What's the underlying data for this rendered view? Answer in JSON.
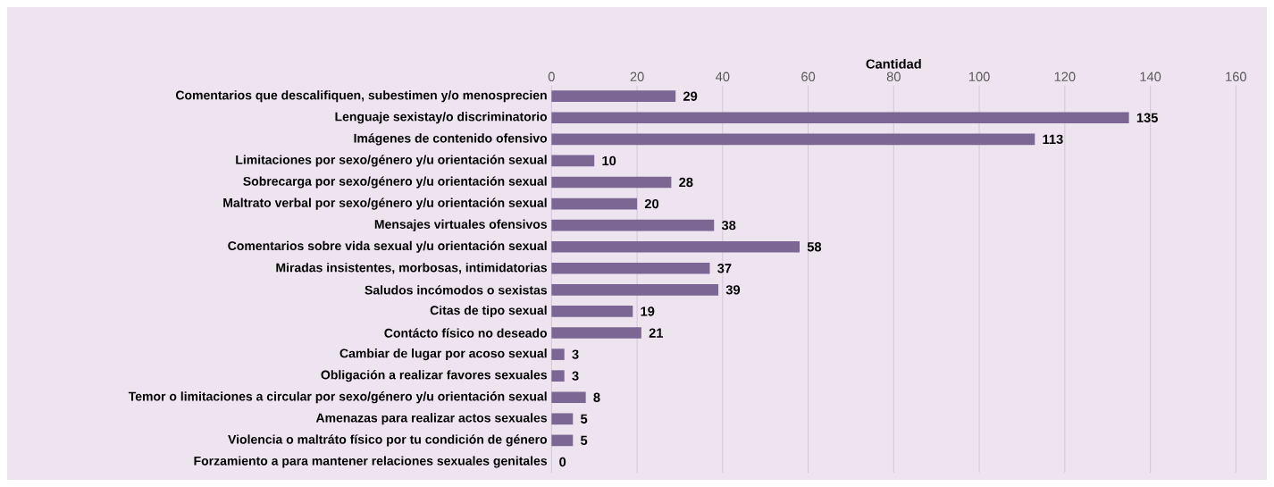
{
  "chart_data": {
    "type": "bar",
    "orientation": "horizontal",
    "xlabel": "Cantidad",
    "categories": [
      "Comentarios que descalifiquen, subestimen y/o menosprecien",
      "Lenguaje sexistay/o discriminatorio",
      "Imágenes de contenido ofensivo",
      "Limitaciones por sexo/género y/u orientación sexual",
      "Sobrecarga por sexo/género y/u orientación sexual",
      "Maltrato verbal por sexo/género y/u orientación sexual",
      "Mensajes virtuales ofensivos",
      "Comentarios sobre vida sexual y/u orientación sexual",
      "Miradas insistentes, morbosas, intimidatorias",
      "Saludos incómodos o sexistas",
      "Citas de tipo sexual",
      "Contácto físico no deseado",
      "Cambiar de lugar por acoso sexual",
      "Obligación a realizar favores sexuales",
      "Temor o limitaciones a circular por sexo/género y/u orientación sexual",
      "Amenazas para realizar actos sexuales",
      "Violencia o maltráto físico por tu condición de género",
      "Forzamiento a para mantener relaciones sexuales genitales"
    ],
    "values": [
      29,
      135,
      113,
      10,
      28,
      20,
      38,
      58,
      37,
      39,
      19,
      21,
      3,
      3,
      8,
      5,
      5,
      0
    ],
    "color": "#7b6694",
    "xlim": [
      0,
      160
    ],
    "xticks": [
      0,
      20,
      40,
      60,
      80,
      100,
      120,
      140,
      160
    ],
    "grid": "x",
    "data_labels": true
  }
}
